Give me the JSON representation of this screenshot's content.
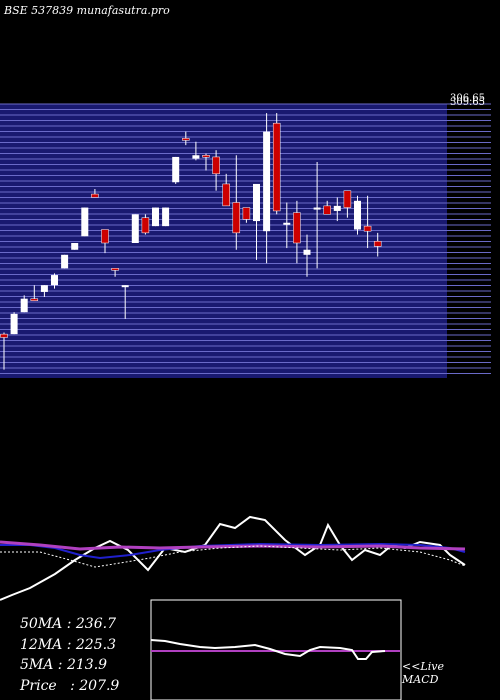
{
  "header": {
    "title": "BSE 537839 munafasutra.pro"
  },
  "chart_data": {
    "type": "candlestick",
    "price_top_labels": [
      "306.65",
      "309.65"
    ],
    "candles": [
      {
        "o": 229,
        "h": 232,
        "l": 210,
        "c": 231,
        "color": "red"
      },
      {
        "o": 231,
        "h": 244,
        "l": 231,
        "c": 243,
        "color": "white"
      },
      {
        "o": 244,
        "h": 254,
        "l": 244,
        "c": 252,
        "color": "white"
      },
      {
        "o": 252,
        "h": 260,
        "l": 251,
        "c": 252,
        "color": "red"
      },
      {
        "o": 256,
        "h": 260,
        "l": 253,
        "c": 260,
        "color": "white"
      },
      {
        "o": 260,
        "h": 267,
        "l": 258,
        "c": 266,
        "color": "white"
      },
      {
        "o": 270,
        "h": 278,
        "l": 270,
        "c": 278,
        "color": "white"
      },
      {
        "o": 281,
        "h": 285,
        "l": 281,
        "c": 285,
        "color": "white"
      },
      {
        "o": 289,
        "h": 306,
        "l": 289,
        "c": 306,
        "color": "white"
      },
      {
        "o": 312,
        "h": 317,
        "l": 312,
        "c": 314,
        "color": "red"
      },
      {
        "o": 293,
        "h": 293,
        "l": 279,
        "c": 285,
        "color": "red"
      },
      {
        "o": 270,
        "h": 270,
        "l": 265,
        "c": 269,
        "color": "red"
      },
      {
        "o": 260,
        "h": 260,
        "l": 240,
        "c": 260,
        "color": "white"
      },
      {
        "o": 285,
        "h": 302,
        "l": 285,
        "c": 302,
        "color": "white"
      },
      {
        "o": 300,
        "h": 302,
        "l": 290,
        "c": 291,
        "color": "red"
      },
      {
        "o": 295,
        "h": 306,
        "l": 295,
        "c": 306,
        "color": "white"
      },
      {
        "o": 295,
        "h": 306,
        "l": 295,
        "c": 306,
        "color": "white"
      },
      {
        "o": 321,
        "h": 336,
        "l": 320,
        "c": 336,
        "color": "white"
      },
      {
        "o": 347,
        "h": 351,
        "l": 343,
        "c": 347,
        "color": "red"
      },
      {
        "o": 337,
        "h": 345,
        "l": 334,
        "c": 335,
        "color": "white"
      },
      {
        "o": 337,
        "h": 338,
        "l": 328,
        "c": 336,
        "color": "red"
      },
      {
        "o": 336,
        "h": 340,
        "l": 316,
        "c": 326,
        "color": "red"
      },
      {
        "o": 320,
        "h": 326,
        "l": 307,
        "c": 307,
        "color": "red"
      },
      {
        "o": 291,
        "h": 337,
        "l": 281,
        "c": 309,
        "color": "red"
      },
      {
        "o": 306,
        "h": 306,
        "l": 297,
        "c": 299,
        "color": "red"
      },
      {
        "o": 298,
        "h": 320,
        "l": 275,
        "c": 320,
        "color": "white"
      },
      {
        "o": 292,
        "h": 362,
        "l": 273,
        "c": 351,
        "color": "white"
      },
      {
        "o": 356,
        "h": 362,
        "l": 302,
        "c": 304,
        "color": "red"
      },
      {
        "o": 297,
        "h": 309,
        "l": 282,
        "c": 297,
        "color": "white"
      },
      {
        "o": 285,
        "h": 310,
        "l": 273,
        "c": 303,
        "color": "red"
      },
      {
        "o": 278,
        "h": 290,
        "l": 265,
        "c": 281,
        "color": "white"
      },
      {
        "o": 306,
        "h": 333,
        "l": 270,
        "c": 306,
        "color": "white"
      },
      {
        "o": 302,
        "h": 310,
        "l": 302,
        "c": 307,
        "color": "red"
      },
      {
        "o": 304,
        "h": 312,
        "l": 298,
        "c": 307,
        "color": "white"
      },
      {
        "o": 316,
        "h": 316,
        "l": 300,
        "c": 306,
        "color": "red"
      },
      {
        "o": 293,
        "h": 313,
        "l": 290,
        "c": 310,
        "color": "white"
      },
      {
        "o": 292,
        "h": 313,
        "l": 282,
        "c": 295,
        "color": "red"
      },
      {
        "o": 286,
        "h": 291,
        "l": 277,
        "c": 283,
        "color": "red"
      }
    ],
    "indicators": {
      "ma50_label": "50MA",
      "ma50_value": "236.7",
      "ma12_label": "12MA",
      "ma12_value": "225.3",
      "ma5_label": "5MA",
      "ma5_value": "213.9",
      "price_label": "Price",
      "price_value": "207.9"
    },
    "macd_label": "<<Live",
    "macd_label2": "MACD",
    "colors": {
      "background": "#000000",
      "grid_band": "#191970",
      "grid_line": "#6a6ac8",
      "up": "#ffffff",
      "down": "#cc0000",
      "ma_violet": "#b040c0",
      "ma_blue": "#2020cc"
    }
  }
}
